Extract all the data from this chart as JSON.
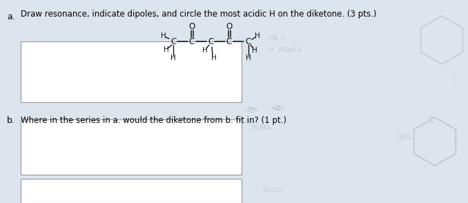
{
  "bg_color": "#dce4ed",
  "title_text": "Draw resonance, indicate dipoles, and circle the most acidic H on the diketone. (3 pts.)",
  "part_a_label": "a.",
  "part_b_label": "b.",
  "part_b_text": "Where in the series in a. would the diketone from b. fit in? (1 pt.)",
  "font_size_title": 8.5,
  "font_size_label": 9.0,
  "font_size_mol": 8.5,
  "mol_color": "#111111",
  "box_color": "#aaaaaa",
  "faded_color": "#b0b8c5",
  "faded_mol_color": "#c0c8d0"
}
